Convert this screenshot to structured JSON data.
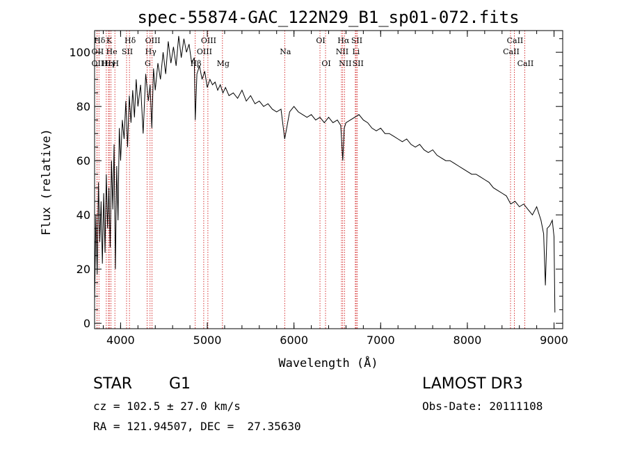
{
  "chart_data": {
    "type": "line",
    "title": "spec-55874-GAC_122N29_B1_sp01-072.fits",
    "xlabel": "Wavelength (Å)",
    "ylabel": "Flux (relative)",
    "xlim": [
      3700,
      9100
    ],
    "ylim": [
      -2,
      108
    ],
    "x_ticks": [
      4000,
      5000,
      6000,
      7000,
      8000,
      9000
    ],
    "y_ticks": [
      0,
      20,
      40,
      60,
      80,
      100
    ],
    "grid": false,
    "line_color": "#000000",
    "marker_color": "#cc0000",
    "series": [
      {
        "name": "flux",
        "x": [
          3700,
          3715,
          3730,
          3745,
          3760,
          3775,
          3790,
          3805,
          3820,
          3835,
          3850,
          3865,
          3880,
          3895,
          3910,
          3925,
          3940,
          3955,
          3970,
          3985,
          4000,
          4020,
          4040,
          4060,
          4080,
          4100,
          4120,
          4140,
          4160,
          4180,
          4200,
          4230,
          4260,
          4290,
          4320,
          4340,
          4360,
          4380,
          4400,
          4430,
          4460,
          4490,
          4520,
          4550,
          4580,
          4610,
          4640,
          4670,
          4700,
          4730,
          4760,
          4790,
          4820,
          4850,
          4861,
          4880,
          4910,
          4940,
          4970,
          5000,
          5030,
          5060,
          5090,
          5120,
          5150,
          5180,
          5210,
          5250,
          5300,
          5350,
          5400,
          5450,
          5500,
          5550,
          5600,
          5650,
          5700,
          5750,
          5800,
          5850,
          5893,
          5950,
          6000,
          6050,
          6100,
          6150,
          6200,
          6250,
          6300,
          6350,
          6400,
          6450,
          6500,
          6540,
          6563,
          6580,
          6600,
          6650,
          6700,
          6750,
          6800,
          6850,
          6900,
          6950,
          7000,
          7050,
          7100,
          7150,
          7200,
          7250,
          7300,
          7350,
          7400,
          7450,
          7500,
          7550,
          7600,
          7650,
          7700,
          7750,
          7800,
          7850,
          7900,
          7950,
          8000,
          8050,
          8100,
          8150,
          8200,
          8250,
          8300,
          8350,
          8400,
          8450,
          8500,
          8550,
          8600,
          8650,
          8700,
          8750,
          8800,
          8850,
          8880,
          8900,
          8920,
          8950,
          8980,
          9000,
          9010
        ],
        "y": [
          8,
          40,
          18,
          52,
          30,
          45,
          22,
          48,
          26,
          55,
          35,
          50,
          28,
          60,
          42,
          66,
          20,
          58,
          38,
          72,
          60,
          75,
          68,
          82,
          65,
          84,
          74,
          86,
          76,
          90,
          80,
          88,
          70,
          92,
          82,
          88,
          72,
          94,
          86,
          96,
          90,
          100,
          92,
          104,
          96,
          102,
          95,
          106,
          98,
          105,
          100,
          103,
          96,
          98,
          75,
          92,
          95,
          90,
          93,
          87,
          90,
          88,
          89,
          86,
          88,
          85,
          87,
          84,
          85,
          83,
          86,
          82,
          84,
          81,
          82,
          80,
          81,
          79,
          78,
          79,
          68,
          78,
          80,
          78,
          77,
          76,
          77,
          75,
          76,
          74,
          76,
          74,
          75,
          73,
          60,
          72,
          74,
          75,
          76,
          77,
          75,
          74,
          72,
          71,
          72,
          70,
          70,
          69,
          68,
          67,
          68,
          66,
          65,
          66,
          64,
          63,
          64,
          62,
          61,
          60,
          60,
          59,
          58,
          57,
          56,
          55,
          55,
          54,
          53,
          52,
          50,
          49,
          48,
          47,
          44,
          45,
          43,
          44,
          42,
          40,
          43,
          38,
          33,
          14,
          35,
          36,
          38,
          32,
          4
        ]
      }
    ],
    "line_markers": [
      {
        "label": "Hδ",
        "x": 3750,
        "row": 1
      },
      {
        "label": "OII",
        "x": 3727,
        "row": 2
      },
      {
        "label": "OII",
        "x": 3727,
        "row": 3
      },
      {
        "label": "Hε",
        "x": 3835,
        "row": 3
      },
      {
        "label": "K",
        "x": 3860,
        "row": 1
      },
      {
        "label": "He",
        "x": 3889,
        "row": 2
      },
      {
        "label": "SII",
        "x": 4069,
        "row": 2
      },
      {
        "label": "H",
        "x": 3934,
        "row": 3
      },
      {
        "label": "Hγ",
        "x": 3870,
        "row": 3
      },
      {
        "label": "Hδ",
        "x": 4102,
        "row": 1
      },
      {
        "label": "OIII",
        "x": 4363,
        "row": 1
      },
      {
        "label": "Hγ",
        "x": 4340,
        "row": 2
      },
      {
        "label": "G",
        "x": 4305,
        "row": 3
      },
      {
        "label": "OIII",
        "x": 5007,
        "row": 1
      },
      {
        "label": "Hβ",
        "x": 4861,
        "row": 3
      },
      {
        "label": "OIII",
        "x": 4959,
        "row": 2
      },
      {
        "label": "Mg",
        "x": 5175,
        "row": 3
      },
      {
        "label": "Na",
        "x": 5893,
        "row": 2
      },
      {
        "label": "OI",
        "x": 6300,
        "row": 1
      },
      {
        "label": "OI",
        "x": 6364,
        "row": 3
      },
      {
        "label": "Hα",
        "x": 6563,
        "row": 1
      },
      {
        "label": "NII",
        "x": 6548,
        "row": 2
      },
      {
        "label": "NII",
        "x": 6583,
        "row": 3
      },
      {
        "label": "SII",
        "x": 6717,
        "row": 1
      },
      {
        "label": "Li",
        "x": 6708,
        "row": 2
      },
      {
        "label": "SII",
        "x": 6731,
        "row": 3
      },
      {
        "label": "CaII",
        "x": 8542,
        "row": 1
      },
      {
        "label": "CaII",
        "x": 8498,
        "row": 2
      },
      {
        "label": "CaII",
        "x": 8662,
        "row": 3
      }
    ]
  },
  "info": {
    "object_type": "STAR",
    "subclass": "G1",
    "survey": "LAMOST DR3",
    "cz": "cz = 102.5 ± 27.0 km/s",
    "obs_date": "Obs-Date: 20111108",
    "coords": "RA = 121.94507, DEC =  27.35630"
  }
}
